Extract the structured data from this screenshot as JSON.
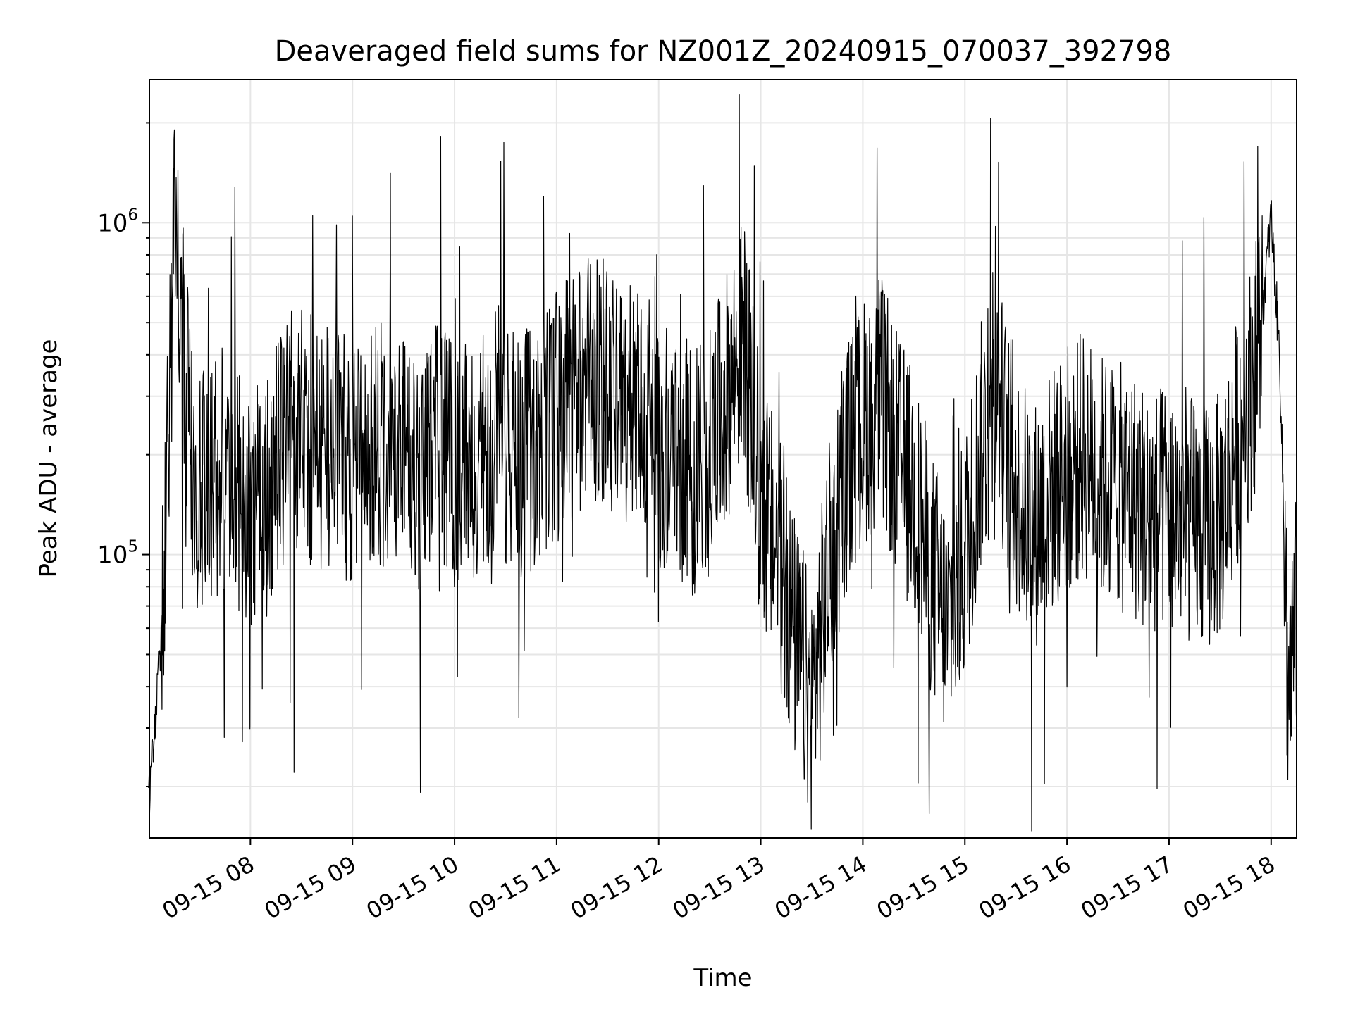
{
  "chart_data": {
    "type": "line",
    "title": "Deaveraged field sums for NZ001Z_20240915_070037_392798",
    "xlabel": "Time",
    "ylabel": "Peak ADU - average",
    "yscale": "log",
    "ylim": [
      14000,
      2700000
    ],
    "xlim": [
      "2024-09-15 07:00:37",
      "2024-09-15 18:15:00"
    ],
    "grid": true,
    "x_tick_labels": [
      "09-15 08",
      "09-15 09",
      "09-15 10",
      "09-15 11",
      "09-15 12",
      "09-15 13",
      "09-15 14",
      "09-15 15",
      "09-15 16",
      "09-15 17",
      "09-15 18"
    ],
    "y_tick_labels": [
      {
        "base": "10",
        "exp": "5",
        "value": 100000
      },
      {
        "base": "10",
        "exp": "6",
        "value": 1000000
      }
    ],
    "series": [
      {
        "color": "#000000",
        "x": [
          "2024-09-15 07:00",
          "2024-09-15 07:05",
          "2024-09-15 07:10",
          "2024-09-15 07:15",
          "2024-09-15 07:20",
          "2024-09-15 07:25",
          "2024-09-15 07:30",
          "2024-09-15 07:35",
          "2024-09-15 07:40",
          "2024-09-15 07:45",
          "2024-09-15 07:50",
          "2024-09-15 07:55",
          "2024-09-15 08:00",
          "2024-09-15 08:10",
          "2024-09-15 08:20",
          "2024-09-15 08:30",
          "2024-09-15 08:40",
          "2024-09-15 08:50",
          "2024-09-15 09:00",
          "2024-09-15 09:10",
          "2024-09-15 09:20",
          "2024-09-15 09:30",
          "2024-09-15 09:40",
          "2024-09-15 09:50",
          "2024-09-15 10:00",
          "2024-09-15 10:10",
          "2024-09-15 10:20",
          "2024-09-15 10:30",
          "2024-09-15 10:40",
          "2024-09-15 10:50",
          "2024-09-15 11:00",
          "2024-09-15 11:10",
          "2024-09-15 11:20",
          "2024-09-15 11:30",
          "2024-09-15 11:40",
          "2024-09-15 11:50",
          "2024-09-15 12:00",
          "2024-09-15 12:10",
          "2024-09-15 12:20",
          "2024-09-15 12:30",
          "2024-09-15 12:40",
          "2024-09-15 12:50",
          "2024-09-15 13:00",
          "2024-09-15 13:10",
          "2024-09-15 13:20",
          "2024-09-15 13:30",
          "2024-09-15 13:40",
          "2024-09-15 13:50",
          "2024-09-15 14:00",
          "2024-09-15 14:10",
          "2024-09-15 14:20",
          "2024-09-15 14:30",
          "2024-09-15 14:40",
          "2024-09-15 14:50",
          "2024-09-15 15:00",
          "2024-09-15 15:10",
          "2024-09-15 15:20",
          "2024-09-15 15:30",
          "2024-09-15 15:40",
          "2024-09-15 15:50",
          "2024-09-15 16:00",
          "2024-09-15 16:10",
          "2024-09-15 16:20",
          "2024-09-15 16:30",
          "2024-09-15 16:40",
          "2024-09-15 16:50",
          "2024-09-15 17:00",
          "2024-09-15 17:10",
          "2024-09-15 17:20",
          "2024-09-15 17:30",
          "2024-09-15 17:40",
          "2024-09-15 17:50",
          "2024-09-15 17:55",
          "2024-09-15 18:00",
          "2024-09-15 18:05",
          "2024-09-15 18:10",
          "2024-09-15 18:15"
        ],
        "values": [
          18000,
          35000,
          100000,
          900000,
          450000,
          200000,
          140000,
          160000,
          170000,
          180000,
          150000,
          170000,
          140000,
          150000,
          220000,
          250000,
          200000,
          230000,
          180000,
          200000,
          220000,
          190000,
          170000,
          210000,
          180000,
          200000,
          190000,
          210000,
          200000,
          220000,
          260000,
          300000,
          350000,
          320000,
          280000,
          300000,
          220000,
          200000,
          180000,
          200000,
          300000,
          450000,
          150000,
          100000,
          55000,
          35000,
          90000,
          180000,
          250000,
          300000,
          200000,
          150000,
          90000,
          60000,
          100000,
          220000,
          280000,
          160000,
          120000,
          150000,
          180000,
          200000,
          170000,
          160000,
          150000,
          130000,
          140000,
          130000,
          120000,
          130000,
          220000,
          350000,
          550000,
          1050000,
          400000,
          40000,
          65000
        ]
      }
    ]
  }
}
